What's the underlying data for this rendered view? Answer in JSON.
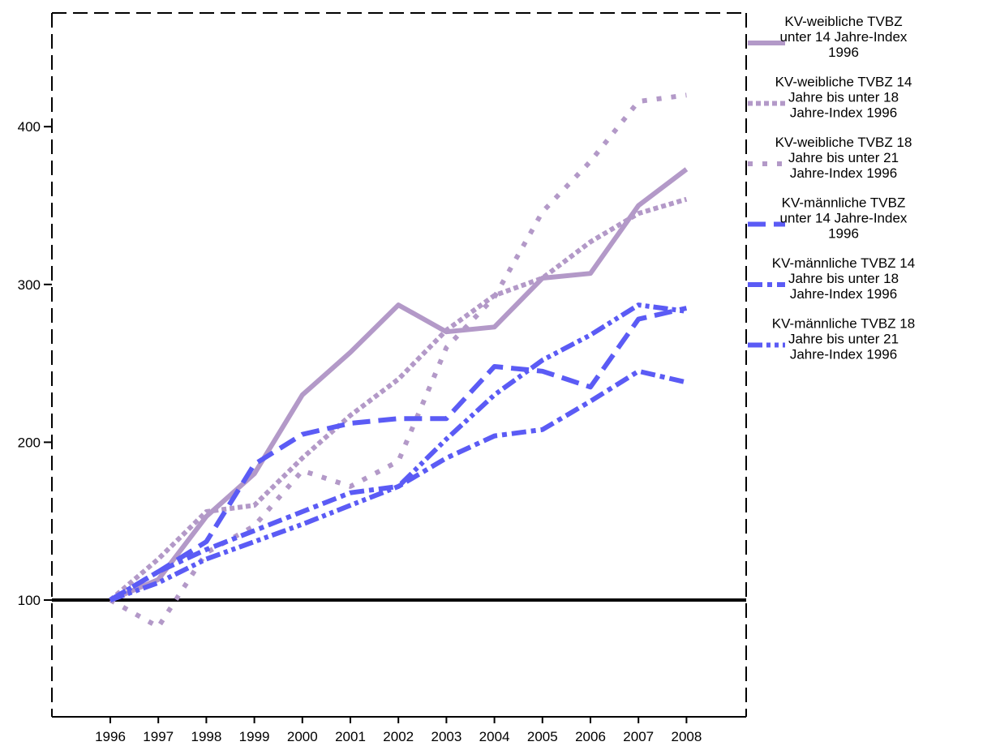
{
  "chart_data": {
    "type": "line",
    "title": "",
    "xlabel": "",
    "ylabel": "",
    "categories": [
      "1996",
      "1997",
      "1998",
      "1999",
      "2000",
      "2001",
      "2002",
      "2003",
      "2004",
      "2005",
      "2006",
      "2007",
      "2008"
    ],
    "y_ticks": [
      100,
      200,
      300,
      400
    ],
    "ylim": [
      40,
      470
    ],
    "grid": false,
    "legend_position": "right",
    "reference_line": {
      "value": 100,
      "color": "#000000"
    },
    "series": [
      {
        "name": "KV-weibliche TVBZ unter 14 Jahre-Index 1996",
        "color": "#b399c8",
        "dash": "solid",
        "values": [
          100,
          113,
          153,
          180,
          230,
          257,
          287,
          270,
          273,
          304,
          307,
          350,
          373
        ]
      },
      {
        "name": "KV-weibliche TVBZ 14 Jahre bis unter 18 Jahre-Index 1996",
        "color": "#b399c8",
        "dash": "dot",
        "values": [
          100,
          126,
          156,
          160,
          190,
          217,
          240,
          271,
          293,
          304,
          327,
          345,
          354
        ]
      },
      {
        "name": "KV-weibliche TVBZ 18 Jahre bis unter 21 Jahre-Index 1996",
        "color": "#b399c8",
        "dash": "sparse-dot",
        "values": [
          100,
          83,
          130,
          147,
          182,
          172,
          188,
          260,
          292,
          346,
          378,
          416,
          420
        ]
      },
      {
        "name": "KV-männliche TVBZ unter 14 Jahre-Index 1996",
        "color": "#5b5bf5",
        "dash": "dash",
        "values": [
          100,
          118,
          137,
          186,
          205,
          212,
          215,
          215,
          248,
          245,
          235,
          278,
          285
        ]
      },
      {
        "name": "KV-männliche TVBZ 14 Jahre bis unter 18 Jahre-Index 1996",
        "color": "#5b5bf5",
        "dash": "dash-dot",
        "values": [
          100,
          118,
          132,
          144,
          156,
          168,
          172,
          190,
          204,
          208,
          226,
          245,
          238
        ]
      },
      {
        "name": "KV-männliche TVBZ 18 Jahre bis unter 21 Jahre-Index 1996",
        "color": "#5b5bf5",
        "dash": "dash-dot-dot",
        "values": [
          100,
          111,
          126,
          137,
          148,
          160,
          172,
          202,
          230,
          252,
          268,
          287,
          283
        ]
      }
    ],
    "legend_lines": [
      [
        "KV-weibliche TVBZ",
        "unter 14 Jahre-Index",
        "1996"
      ],
      [
        "KV-weibliche TVBZ 14",
        "Jahre bis unter 18",
        "Jahre-Index 1996"
      ],
      [
        "KV-weibliche TVBZ 18",
        "Jahre bis unter 21",
        "Jahre-Index 1996"
      ],
      [
        "KV-männliche TVBZ",
        "unter 14 Jahre-Index",
        "1996"
      ],
      [
        "KV-männliche TVBZ 14",
        "Jahre bis unter 18",
        "Jahre-Index 1996"
      ],
      [
        "KV-männliche TVBZ 18",
        "Jahre bis unter 21",
        "Jahre-Index 1996"
      ]
    ]
  }
}
